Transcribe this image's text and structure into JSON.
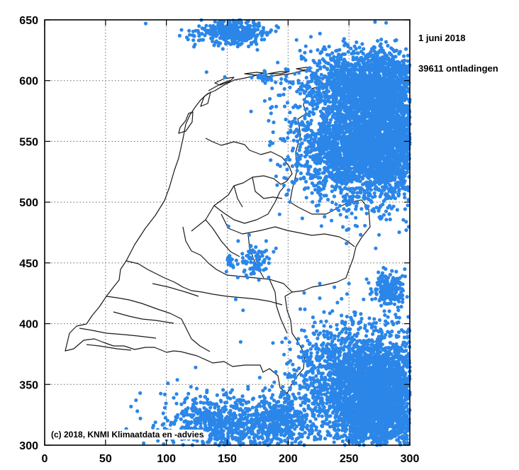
{
  "chart_data": {
    "type": "scatter",
    "title": "",
    "date_label": "1 juni 2018",
    "count_label": "39611 ontladingen",
    "credit": "(c) 2018, KNMI Klimaatdata en -advies",
    "xlim": [
      0,
      300
    ],
    "ylim": [
      300,
      650
    ],
    "x_ticks": [
      0,
      50,
      100,
      150,
      200,
      250,
      300
    ],
    "x_tick_labels": [
      "0",
      "50",
      "100",
      "150",
      "200",
      "250",
      "300"
    ],
    "y_ticks": [
      300,
      350,
      400,
      450,
      500,
      550,
      600,
      650
    ],
    "y_tick_labels": [
      "300",
      "350",
      "400",
      "450",
      "500",
      "550",
      "600",
      "650"
    ],
    "grid": true,
    "series": [
      {
        "marker_color": "#2b86e8",
        "clusters": [
          {
            "cx": 155,
            "cy": 640,
            "sx": 14,
            "sy": 5,
            "n": 400
          },
          {
            "cx": 180,
            "cy": 602,
            "sx": 3,
            "sy": 2,
            "n": 25
          },
          {
            "cx": 262,
            "cy": 598,
            "sx": 26,
            "sy": 14,
            "n": 1500
          },
          {
            "cx": 262,
            "cy": 545,
            "sx": 27,
            "sy": 22,
            "n": 2800
          },
          {
            "cx": 282,
            "cy": 565,
            "sx": 12,
            "sy": 30,
            "n": 900
          },
          {
            "cx": 172,
            "cy": 452,
            "sx": 6,
            "sy": 7,
            "n": 80
          },
          {
            "cx": 153,
            "cy": 450,
            "sx": 3,
            "sy": 3,
            "n": 20
          },
          {
            "cx": 283,
            "cy": 428,
            "sx": 6,
            "sy": 7,
            "n": 220
          },
          {
            "cx": 274,
            "cy": 340,
            "sx": 19,
            "sy": 25,
            "n": 3200
          },
          {
            "cx": 238,
            "cy": 358,
            "sx": 18,
            "sy": 22,
            "n": 700
          },
          {
            "cx": 150,
            "cy": 318,
            "sx": 28,
            "sy": 12,
            "n": 700
          },
          {
            "cx": 195,
            "cy": 322,
            "sx": 14,
            "sy": 11,
            "n": 350
          }
        ],
        "scattered": [
          [
            83,
            647
          ],
          [
            75,
            337
          ],
          [
            148,
            603
          ],
          [
            133,
            607
          ],
          [
            109,
            323
          ],
          [
            120,
            313
          ],
          [
            184,
            567
          ],
          [
            202,
            559
          ],
          [
            191,
            514
          ],
          [
            163,
            411
          ],
          [
            193,
            490
          ],
          [
            297,
            477
          ],
          [
            251,
            590
          ],
          [
            270,
            620
          ],
          [
            229,
            577
          ],
          [
            220,
            586
          ],
          [
            238,
            609
          ],
          [
            250,
            518
          ],
          [
            230,
            488
          ],
          [
            211,
            530
          ],
          [
            262,
            420
          ],
          [
            250,
            433
          ],
          [
            238,
            430
          ],
          [
            226,
            421
          ],
          [
            198,
            388
          ],
          [
            211,
            377
          ],
          [
            223,
            383
          ],
          [
            199,
            367
          ],
          [
            240,
            399
          ],
          [
            255,
            407
          ],
          [
            280,
            402
          ],
          [
            291,
            393
          ],
          [
            161,
            385
          ],
          [
            124,
            364
          ],
          [
            136,
            335
          ],
          [
            117,
            339
          ],
          [
            262,
            386
          ],
          [
            272,
            462
          ],
          [
            248,
            466
          ],
          [
            293,
            414
          ],
          [
            258,
            575
          ],
          [
            244,
            545
          ],
          [
            287,
            593
          ],
          [
            297,
            600
          ],
          [
            157,
            420
          ],
          [
            176,
            436
          ],
          [
            184,
            438
          ],
          [
            168,
            473
          ],
          [
            159,
            468
          ],
          [
            151,
            480
          ],
          [
            182,
            468
          ],
          [
            190,
            462
          ],
          [
            210,
            412
          ],
          [
            226,
            433
          ]
        ]
      }
    ]
  }
}
